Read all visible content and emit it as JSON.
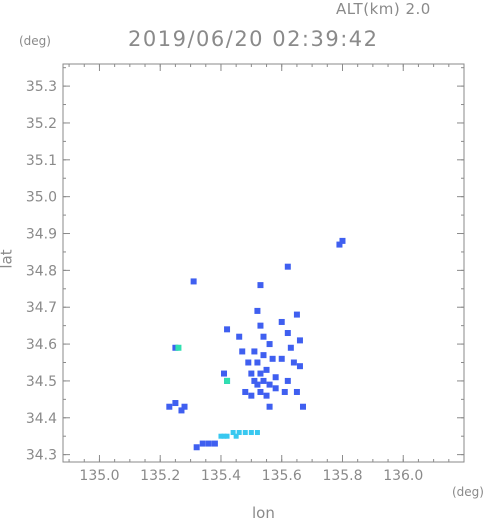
{
  "header": {
    "altitude_label": "ALT(km) 2.0",
    "datetime": "2019/06/20 02:39:42"
  },
  "chart_data": {
    "type": "scatter",
    "title": "2019/06/20 02:39:42",
    "subtitle": "ALT(km) 2.0",
    "xlabel": "lon",
    "ylabel": "lat",
    "x_unit": "(deg)",
    "y_unit": "(deg)",
    "xlim": [
      134.88,
      136.2
    ],
    "ylim": [
      34.28,
      35.36
    ],
    "x_ticks": [
      135.0,
      135.2,
      135.4,
      135.6,
      135.8,
      136.0
    ],
    "x_tick_labels": [
      "135.0",
      "135.2",
      "135.4",
      "135.6",
      "135.8",
      "136.0"
    ],
    "y_ticks": [
      34.3,
      34.4,
      34.5,
      34.6,
      34.7,
      34.8,
      34.9,
      35.0,
      35.1,
      35.2,
      35.3
    ],
    "y_tick_labels": [
      "34.3",
      "34.4",
      "34.5",
      "34.6",
      "34.7",
      "34.8",
      "34.9",
      "35.0",
      "35.1",
      "35.2",
      "35.3"
    ],
    "grid": false,
    "colors": {
      "blue": "#3f5ff0",
      "cyan": "#38c8f0",
      "teal": "#30e0b0"
    },
    "series": [
      {
        "color_key": "blue",
        "points": [
          [
            135.5,
            34.52
          ],
          [
            135.52,
            34.55
          ],
          [
            135.54,
            34.5
          ],
          [
            135.53,
            34.47
          ],
          [
            135.51,
            34.58
          ],
          [
            135.55,
            34.53
          ],
          [
            135.56,
            34.49
          ],
          [
            135.52,
            34.49
          ],
          [
            135.5,
            34.46
          ],
          [
            135.57,
            34.56
          ],
          [
            135.49,
            34.55
          ],
          [
            135.54,
            34.57
          ],
          [
            135.53,
            34.52
          ],
          [
            135.55,
            34.46
          ],
          [
            135.51,
            34.5
          ],
          [
            135.58,
            34.51
          ],
          [
            135.56,
            34.6
          ],
          [
            135.54,
            34.62
          ],
          [
            135.53,
            34.65
          ],
          [
            135.62,
            34.5
          ],
          [
            135.6,
            34.56
          ],
          [
            135.64,
            34.55
          ],
          [
            135.63,
            34.59
          ],
          [
            135.66,
            34.54
          ],
          [
            135.61,
            34.47
          ],
          [
            135.65,
            34.47
          ],
          [
            135.67,
            34.43
          ],
          [
            135.66,
            34.61
          ],
          [
            135.6,
            34.66
          ],
          [
            135.62,
            34.63
          ],
          [
            135.65,
            34.68
          ],
          [
            135.47,
            34.58
          ],
          [
            135.46,
            34.62
          ],
          [
            135.42,
            34.64
          ],
          [
            135.41,
            34.52
          ],
          [
            135.42,
            34.5
          ],
          [
            135.52,
            34.69
          ],
          [
            135.53,
            34.76
          ],
          [
            135.62,
            34.81
          ],
          [
            135.79,
            34.87
          ],
          [
            135.8,
            34.88
          ],
          [
            135.31,
            34.77
          ],
          [
            135.25,
            34.59
          ],
          [
            135.23,
            34.43
          ],
          [
            135.25,
            34.44
          ],
          [
            135.27,
            34.42
          ],
          [
            135.28,
            34.43
          ],
          [
            135.34,
            34.33
          ],
          [
            135.36,
            34.33
          ],
          [
            135.38,
            34.33
          ],
          [
            135.32,
            34.32
          ],
          [
            135.56,
            34.43
          ],
          [
            135.58,
            34.48
          ],
          [
            135.48,
            34.47
          ]
        ]
      },
      {
        "color_key": "cyan",
        "points": [
          [
            135.4,
            34.35
          ],
          [
            135.42,
            34.35
          ],
          [
            135.44,
            34.36
          ],
          [
            135.46,
            34.36
          ],
          [
            135.48,
            34.36
          ],
          [
            135.5,
            34.36
          ],
          [
            135.52,
            34.36
          ],
          [
            135.41,
            34.35
          ],
          [
            135.45,
            34.35
          ]
        ]
      },
      {
        "color_key": "teal",
        "points": [
          [
            135.26,
            34.59
          ],
          [
            135.42,
            34.5
          ]
        ]
      }
    ]
  }
}
